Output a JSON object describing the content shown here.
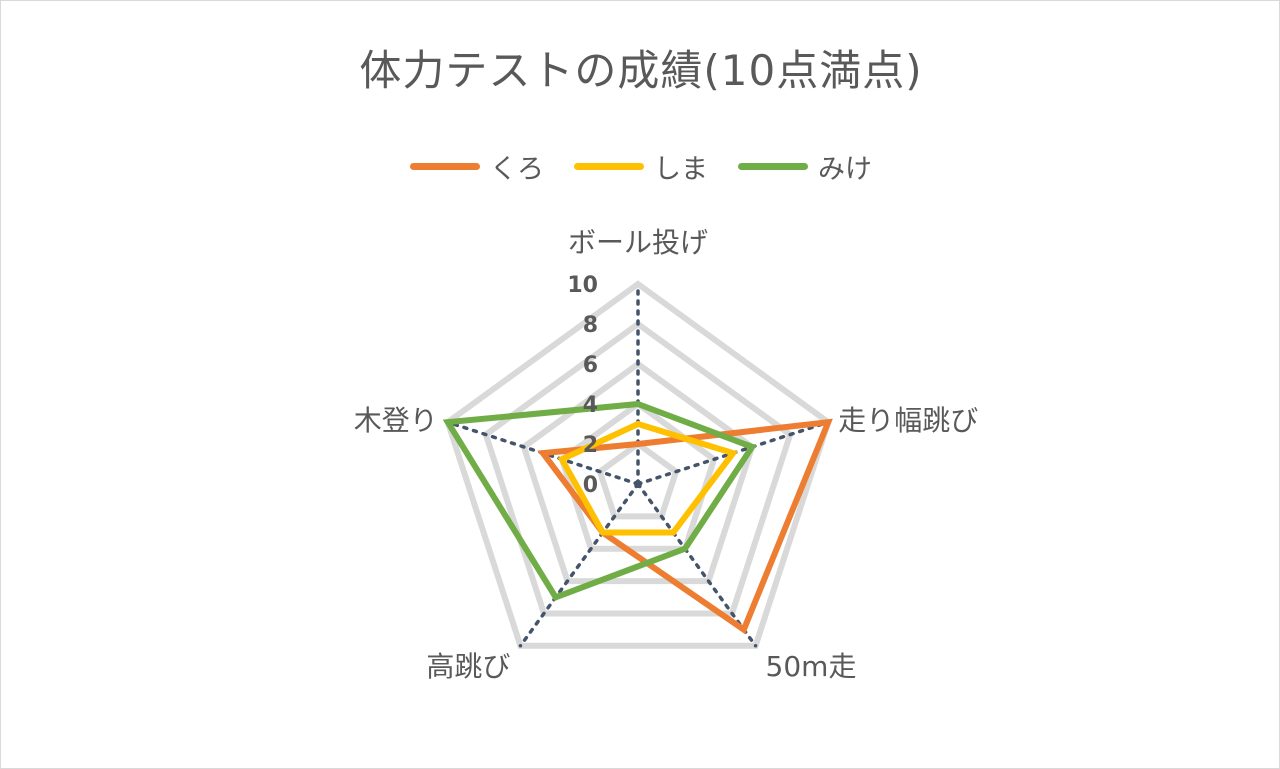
{
  "chart_data": {
    "type": "radar",
    "title": "体力テストの成績(10点満点)",
    "axes": [
      "ボール投げ",
      "走り幅跳び",
      "50m走",
      "高跳び",
      "木登り"
    ],
    "series": [
      {
        "name": "くろ",
        "color": "#ED7D31",
        "values": [
          2,
          10,
          9,
          3,
          5
        ]
      },
      {
        "name": "しま",
        "color": "#FFC000",
        "values": [
          3,
          5,
          3,
          3,
          4
        ]
      },
      {
        "name": "みけ",
        "color": "#70AD47",
        "values": [
          4,
          6,
          4,
          7,
          10
        ]
      }
    ],
    "r_ticks": [
      "0",
      "2",
      "4",
      "6",
      "8",
      "10"
    ],
    "r_range": [
      0,
      10
    ],
    "legend_position": "top",
    "grid": true
  }
}
